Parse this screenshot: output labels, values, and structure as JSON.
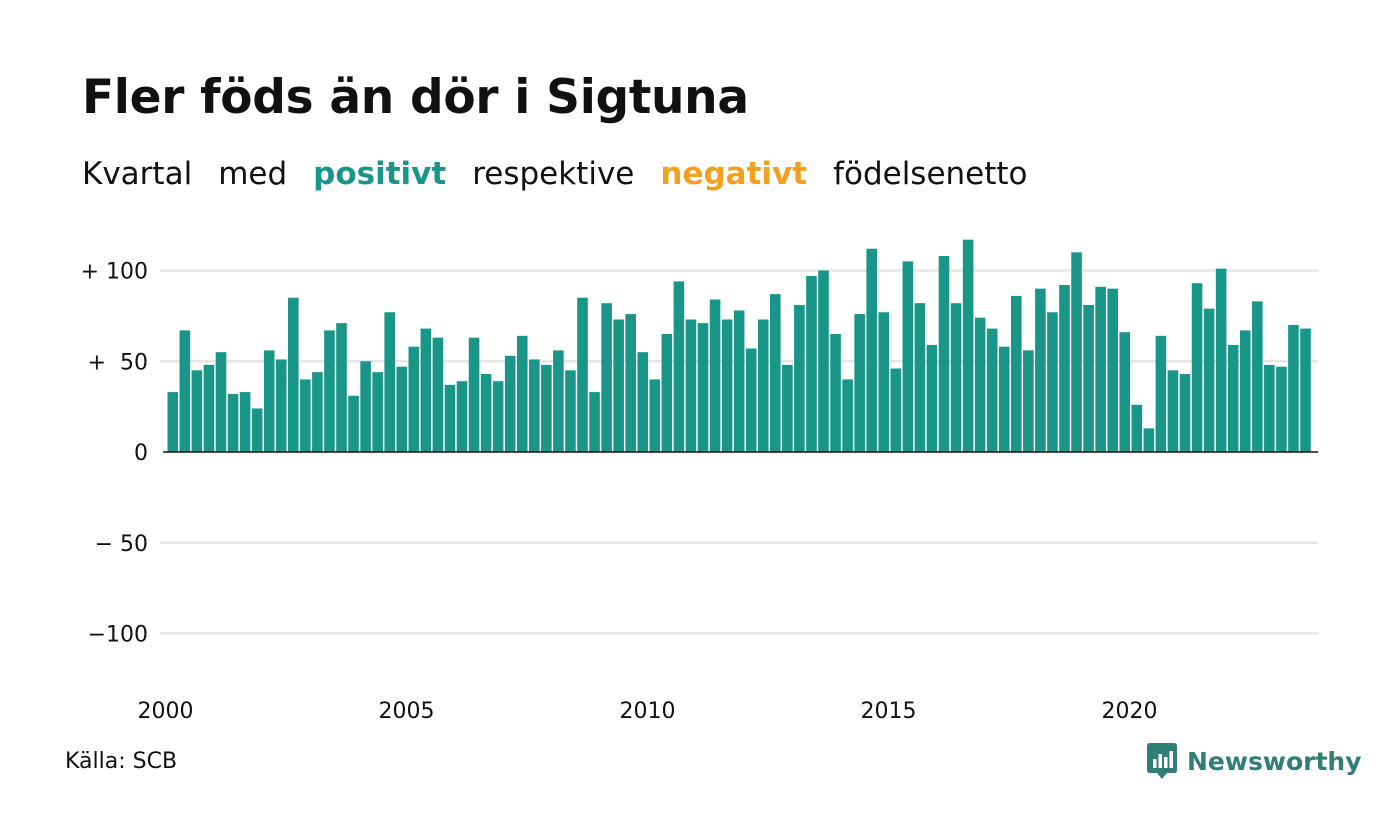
{
  "title": "Fler föds än dör i Sigtuna",
  "subtitle": {
    "w1": "Kvartal",
    "w2": "med",
    "positive": "positivt",
    "w3": "respektive",
    "negative": "negativt",
    "w4": "födelsenetto"
  },
  "colors": {
    "positive": "#1a9688",
    "negative": "#f3a01e",
    "gridline": "#e6e6e6",
    "text": "#111111"
  },
  "source": "Källa: SCB",
  "brand": {
    "name": "Newsworthy",
    "icon": "newsworthy-logo-icon"
  },
  "chart_data": {
    "type": "bar",
    "title": "Fler föds än dör i Sigtuna",
    "xlabel": "",
    "ylabel": "",
    "ylim": [
      -120,
      120
    ],
    "yticks": [
      100,
      50,
      0,
      -50,
      -100
    ],
    "ytick_labels": [
      "+ 100",
      "+  50",
      "0",
      "− 50",
      "−100"
    ],
    "x_tick_labels": [
      "2000",
      "2005",
      "2010",
      "2015",
      "2020"
    ],
    "grid": true,
    "start_year": 2000,
    "values": [
      33,
      67,
      45,
      48,
      55,
      32,
      33,
      24,
      56,
      51,
      85,
      40,
      44,
      67,
      71,
      31,
      50,
      44,
      77,
      47,
      58,
      68,
      63,
      37,
      39,
      63,
      43,
      39,
      53,
      64,
      51,
      48,
      56,
      45,
      85,
      33,
      82,
      73,
      76,
      55,
      40,
      65,
      94,
      73,
      71,
      84,
      73,
      78,
      57,
      73,
      87,
      48,
      81,
      97,
      100,
      65,
      40,
      76,
      112,
      77,
      46,
      105,
      82,
      59,
      108,
      82,
      117,
      74,
      68,
      58,
      86,
      56,
      90,
      77,
      92,
      110,
      81,
      91,
      90,
      66,
      26,
      13,
      64,
      45,
      43,
      93,
      79,
      101,
      59,
      67,
      83,
      48,
      47,
      70,
      68
    ]
  }
}
